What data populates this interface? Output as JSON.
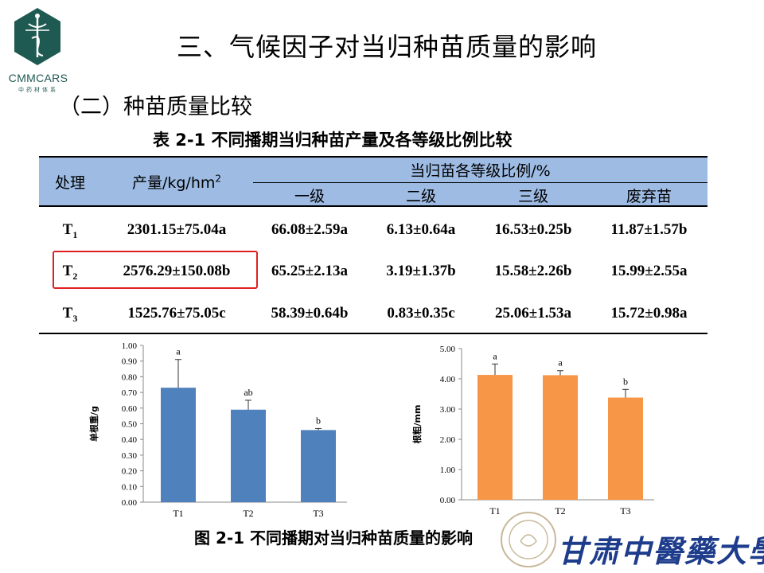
{
  "logo": {
    "text": "CMMCARS",
    "sub": "中药材体系"
  },
  "title": "三、气候因子对当归种苗质量的影响",
  "subtitle": "（二）种苗质量比较",
  "table": {
    "caption": "表 2-1 不同播期当归种苗产量及各等级比例比较",
    "headers": {
      "treatment": "处理",
      "yield": "产量/kg/hm",
      "yield_sup": "2",
      "grade_group": "当归苗各等级比例/%",
      "grades": [
        "一级",
        "二级",
        "三级",
        "废弃苗"
      ]
    },
    "rows": [
      {
        "t": "T",
        "sub": "1",
        "yield": "2301.15±75.04a",
        "g1": "66.08±2.59a",
        "g2": "6.13±0.64a",
        "g3": "16.53±0.25b",
        "g4": "11.87±1.57b"
      },
      {
        "t": "T",
        "sub": "2",
        "yield": "2576.29±150.08b",
        "g1": "65.25±2.13a",
        "g2": "3.19±1.37b",
        "g3": "15.58±2.26b",
        "g4": "15.99±2.55a"
      },
      {
        "t": "T",
        "sub": "3",
        "yield": "1525.76±75.05c",
        "g1": "58.39±0.64b",
        "g2": "0.83±0.35c",
        "g3": "25.06±1.53a",
        "g4": "15.72±0.98a"
      }
    ]
  },
  "chart_data": [
    {
      "type": "bar",
      "categories": [
        "T1",
        "T2",
        "T3"
      ],
      "values": [
        0.73,
        0.59,
        0.46
      ],
      "errors": [
        0.18,
        0.06,
        0.01
      ],
      "letters": [
        "a",
        "ab",
        "b"
      ],
      "ylabel": "单根重/g",
      "ylim": [
        0,
        1.0
      ],
      "yticks": [
        "0.00",
        "0.10",
        "0.20",
        "0.30",
        "0.40",
        "0.50",
        "0.60",
        "0.70",
        "0.80",
        "0.90",
        "1.00"
      ],
      "color": "#4f81bd"
    },
    {
      "type": "bar",
      "categories": [
        "T1",
        "T2",
        "T3"
      ],
      "values": [
        4.13,
        4.12,
        3.38
      ],
      "errors": [
        0.36,
        0.15,
        0.27
      ],
      "letters": [
        "a",
        "a",
        "b"
      ],
      "ylabel": "根粗/mm",
      "ylim": [
        0,
        5.0
      ],
      "yticks": [
        "0.00",
        "1.00",
        "2.00",
        "3.00",
        "4.00",
        "5.00"
      ],
      "color": "#f79646"
    }
  ],
  "figure_caption": "图 2-1 不同播期对当归种苗质量的影响",
  "university": "甘肃中醫藥大學",
  "colors": {
    "table_header": "#9dbbe3",
    "highlight": "#e02020",
    "logo": "#1f5a52",
    "university": "#1e3c8c"
  }
}
